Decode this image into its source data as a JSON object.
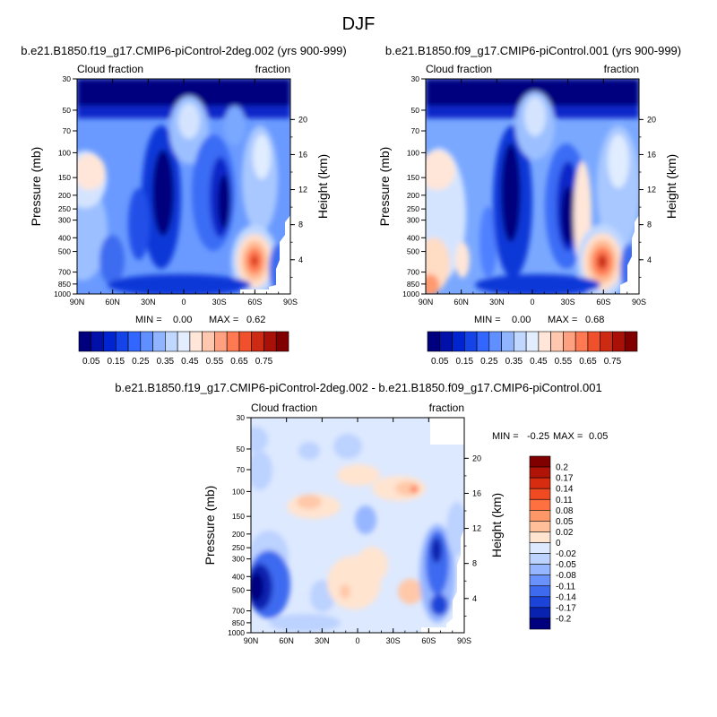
{
  "page_title": "DJF",
  "x_tick_labels": [
    "90N",
    "60N",
    "30N",
    "0",
    "30S",
    "60S",
    "90S"
  ],
  "p_tick_labels": [
    "30",
    "50",
    "70",
    "100",
    "150",
    "200",
    "250",
    "300",
    "400",
    "500",
    "700",
    "850",
    "1000"
  ],
  "p_tick_values": [
    30,
    50,
    70,
    100,
    150,
    200,
    250,
    300,
    400,
    500,
    700,
    850,
    1000
  ],
  "h_tick_labels": [
    "20",
    "16",
    "12",
    "8",
    "4"
  ],
  "h_tick_values": [
    20,
    16,
    12,
    8,
    4
  ],
  "chart_data": [
    {
      "type": "heatmap",
      "title": "b.e21.B1850.f19_g17.CMIP6-piControl-2deg.002 (yrs 900-999)",
      "left_label": "Cloud fraction",
      "right_label": "fraction",
      "ylabel": "Pressure (mb)",
      "y2label": "Height (km)",
      "xlim": [
        "90N",
        "90S"
      ],
      "ylim": [
        1000,
        30
      ],
      "stats": {
        "min_label": "MIN =",
        "min": "0.00",
        "max_label": "MAX =",
        "max": "0.62"
      },
      "colorbar": {
        "labels": [
          "0.05",
          "0.15",
          "0.25",
          "0.35",
          "0.45",
          "0.55",
          "0.65",
          "0.75"
        ],
        "colors": [
          "#00007f",
          "#0010a8",
          "#0024d0",
          "#1444e8",
          "#3366ff",
          "#6090ff",
          "#90b4ff",
          "#c0d8ff",
          "#e2eeff",
          "#ffe6d8",
          "#ffc8ae",
          "#ffa080",
          "#ff7a52",
          "#f0502c",
          "#cc2a12",
          "#a81008",
          "#800000"
        ]
      }
    },
    {
      "type": "heatmap",
      "title": "b.e21.B1850.f09_g17.CMIP6-piControl.001 (yrs 900-999)",
      "left_label": "Cloud fraction",
      "right_label": "fraction",
      "ylabel": "Pressure (mb)",
      "y2label": "Height (km)",
      "xlim": [
        "90N",
        "90S"
      ],
      "ylim": [
        1000,
        30
      ],
      "stats": {
        "min_label": "MIN =",
        "min": "0.00",
        "max_label": "MAX =",
        "max": "0.68"
      },
      "colorbar": {
        "labels": [
          "0.05",
          "0.15",
          "0.25",
          "0.35",
          "0.45",
          "0.55",
          "0.65",
          "0.75"
        ],
        "colors": [
          "#00007f",
          "#0010a8",
          "#0024d0",
          "#1444e8",
          "#3366ff",
          "#6090ff",
          "#90b4ff",
          "#c0d8ff",
          "#e2eeff",
          "#ffe6d8",
          "#ffc8ae",
          "#ffa080",
          "#ff7a52",
          "#f0502c",
          "#cc2a12",
          "#a81008",
          "#800000"
        ]
      }
    },
    {
      "type": "heatmap",
      "title": "b.e21.B1850.f19_g17.CMIP6-piControl-2deg.002 - b.e21.B1850.f09_g17.CMIP6-piControl.001",
      "left_label": "Cloud fraction",
      "right_label": "fraction",
      "ylabel": "Pressure (mb)",
      "y2label": "Height (km)",
      "xlim": [
        "90N",
        "90S"
      ],
      "ylim": [
        1000,
        30
      ],
      "stats": {
        "min_label": "MIN =",
        "min": "-0.25",
        "max_label": "MAX =",
        "max": "0.05"
      },
      "colorbar": {
        "labels": [
          "0.2",
          "0.17",
          "0.14",
          "0.11",
          "0.08",
          "0.05",
          "0.02",
          "0",
          "-0.02",
          "-0.05",
          "-0.08",
          "-0.11",
          "-0.14",
          "-0.17",
          "-0.2"
        ],
        "colors": [
          "#800000",
          "#b01408",
          "#d82c10",
          "#f04a22",
          "#ff7040",
          "#ff9868",
          "#ffbf98",
          "#ffe4d0",
          "#dde9ff",
          "#bcd2ff",
          "#96b6ff",
          "#6a92ff",
          "#3e6af0",
          "#1c44d8",
          "#0a22b0",
          "#00007f"
        ]
      }
    }
  ]
}
